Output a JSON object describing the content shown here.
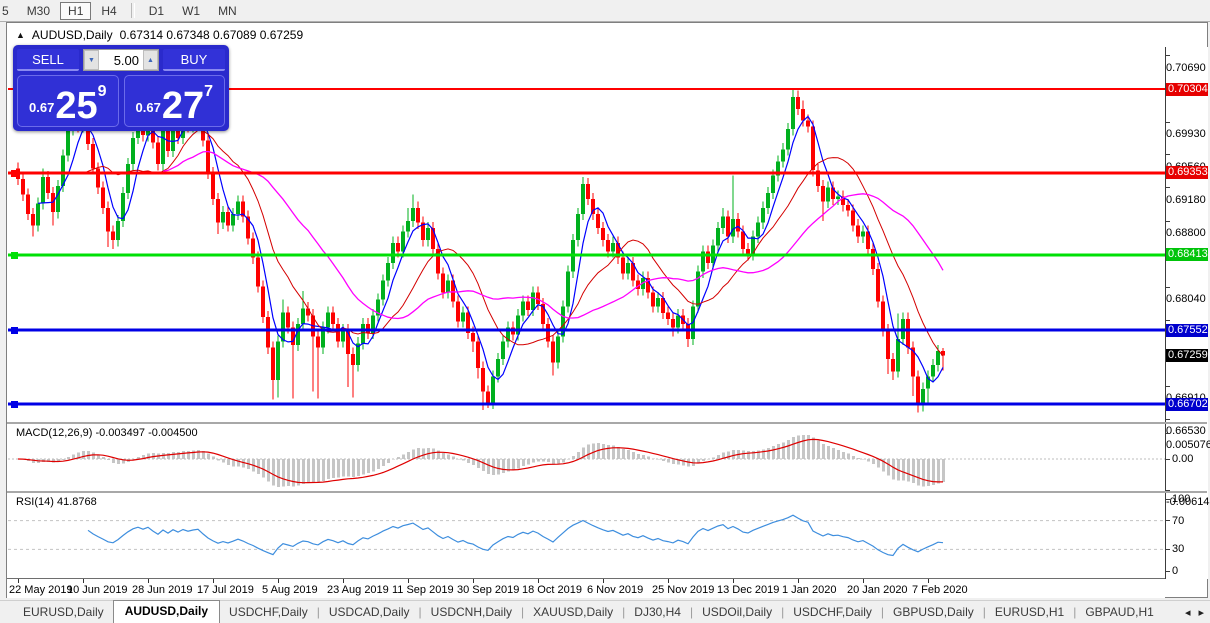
{
  "toolbar": {
    "periods": [
      {
        "label": "5"
      },
      {
        "label": "M30"
      },
      {
        "label": "H1",
        "active": true
      },
      {
        "label": "H4"
      },
      {
        "sep": true
      },
      {
        "label": "D1"
      },
      {
        "label": "W1"
      },
      {
        "label": "MN"
      }
    ]
  },
  "window": {
    "collapse_icon": "▲",
    "title_symbol": "AUDUSD,Daily",
    "title_ohlc": "0.67314 0.67348 0.67089 0.67259"
  },
  "trade_panel": {
    "sell_label": "SELL",
    "buy_label": "BUY",
    "volume": "5.00",
    "down_icon": "▼",
    "up_icon": "▲",
    "sell_price": {
      "prefix": "0.67",
      "big": "25",
      "sup": "9"
    },
    "buy_price": {
      "prefix": "0.67",
      "big": "27",
      "sup": "7"
    }
  },
  "price_axis": {
    "ticks": [
      "0.70690",
      "0.69930",
      "0.69560",
      "0.69180",
      "0.68800",
      "0.68040",
      "0.67660",
      "0.66910",
      "0.66530"
    ],
    "badges": [
      {
        "value": "0.70304",
        "bg": "#E60000"
      },
      {
        "value": "0.69353",
        "bg": "#E60000"
      },
      {
        "value": "0.68413",
        "bg": "#00C40A"
      },
      {
        "value": "0.67552",
        "bg": "#0000CD"
      },
      {
        "value": "0.67259",
        "bg": "#000000",
        "current": true
      },
      {
        "value": "0.66702",
        "bg": "#0000CD"
      }
    ]
  },
  "macd_panel": {
    "label": "MACD(12,26,9) -0.003497 -0.004500",
    "params": [
      12,
      26,
      9
    ],
    "main_value": -0.003497,
    "signal_value": -0.0045,
    "axis_labels": [
      0.005076,
      0.0,
      -0.006148
    ],
    "hist_color": "#C6C6C6",
    "signal_color": "#DF0000"
  },
  "rsi_panel": {
    "label": "RSI(14) 41.8768",
    "period": 14,
    "value": 41.8768,
    "axis_labels": [
      100,
      70,
      30,
      0
    ],
    "level_lines": [
      70,
      30
    ],
    "line_color": "#3E8EDE"
  },
  "bottom_tabs": {
    "labels": [
      "EURUSD,Daily",
      "AUDUSD,Daily",
      "USDCHF,Daily",
      "USDCAD,Daily",
      "USDCNH,Daily",
      "XAUUSD,Daily",
      "DJ30,H4",
      "USDOil,Daily",
      "USDCHF,Daily",
      "GBPUSD,Daily",
      "EURUSD,H1",
      "GBPAUD,H1"
    ],
    "active_index": 1,
    "scroll_left": "◂",
    "scroll_right": "▸"
  },
  "chart_data": {
    "type": "candlestick",
    "symbol": "AUDUSD",
    "timeframe": "Daily",
    "ylim": [
      0.665,
      0.7079
    ],
    "bar_spacing": 5,
    "bull_color": "#00B01E",
    "bear_color": "#FE0000",
    "x_labels": [
      "22 May 2019",
      "10 Jun 2019",
      "28 Jun 2019",
      "17 Jul 2019",
      "5 Aug 2019",
      "23 Aug 2019",
      "11 Sep 2019",
      "30 Sep 2019",
      "18 Oct 2019",
      "6 Nov 2019",
      "25 Nov 2019",
      "13 Dec 2019",
      "1 Jan 2020",
      "20 Jan 2020",
      "7 Feb 2020"
    ],
    "candles_per_label": 13,
    "moving_averages": [
      {
        "name": "fast-ma",
        "period": 5,
        "color": "#0000FF",
        "width": 1.2
      },
      {
        "name": "mid-ma",
        "period": 14,
        "color": "#D40000",
        "width": 1
      },
      {
        "name": "slow-ma",
        "period": 30,
        "color": "#FF00FF",
        "width": 1.3
      }
    ],
    "levels": [
      {
        "price": 0.70304,
        "color": "#FF0000",
        "width": 2,
        "handle": false
      },
      {
        "price": 0.69353,
        "color": "#FF0000",
        "width": 3,
        "handle": true
      },
      {
        "price": 0.68413,
        "color": "#00E006",
        "width": 3,
        "handle": true
      },
      {
        "price": 0.67552,
        "color": "#0000E6",
        "width": 3,
        "handle": true
      },
      {
        "price": 0.66702,
        "color": "#0000E6",
        "width": 3,
        "handle": true
      }
    ],
    "candles": [
      [
        0.694,
        0.6947,
        0.6921,
        0.6928
      ],
      [
        0.6928,
        0.6935,
        0.6903,
        0.691
      ],
      [
        0.691,
        0.6917,
        0.6881,
        0.6888
      ],
      [
        0.6888,
        0.6895,
        0.6862,
        0.6875
      ],
      [
        0.6875,
        0.6907,
        0.6868,
        0.69
      ],
      [
        0.69,
        0.694,
        0.6893,
        0.693
      ],
      [
        0.693,
        0.6937,
        0.6905,
        0.6912
      ],
      [
        0.6912,
        0.6919,
        0.6875,
        0.689
      ],
      [
        0.689,
        0.6927,
        0.6883,
        0.692
      ],
      [
        0.692,
        0.6962,
        0.6913,
        0.6955
      ],
      [
        0.6955,
        0.6992,
        0.6948,
        0.6985
      ],
      [
        0.6985,
        0.7013,
        0.6978,
        0.7
      ],
      [
        0.7,
        0.7007,
        0.6981,
        0.6988
      ],
      [
        0.6988,
        0.701,
        0.6981,
        0.6995
      ],
      [
        0.6995,
        0.7002,
        0.6961,
        0.6968
      ],
      [
        0.6968,
        0.6975,
        0.6933,
        0.694
      ],
      [
        0.694,
        0.6947,
        0.6911,
        0.6918
      ],
      [
        0.6918,
        0.6925,
        0.6888,
        0.6895
      ],
      [
        0.6895,
        0.6902,
        0.685,
        0.6868
      ],
      [
        0.6868,
        0.6875,
        0.6848,
        0.6858
      ],
      [
        0.6858,
        0.6887,
        0.6851,
        0.688
      ],
      [
        0.688,
        0.6919,
        0.6873,
        0.6912
      ],
      [
        0.6912,
        0.6952,
        0.6905,
        0.6945
      ],
      [
        0.6945,
        0.6982,
        0.6938,
        0.6975
      ],
      [
        0.6975,
        0.6999,
        0.6968,
        0.6992
      ],
      [
        0.6992,
        0.6999,
        0.6971,
        0.6978
      ],
      [
        0.6978,
        0.7008,
        0.6971,
        0.6998
      ],
      [
        0.6998,
        0.7005,
        0.6963,
        0.697
      ],
      [
        0.697,
        0.6977,
        0.6938,
        0.6945
      ],
      [
        0.6945,
        0.6992,
        0.6938,
        0.6985
      ],
      [
        0.6985,
        0.6992,
        0.6953,
        0.696
      ],
      [
        0.696,
        0.701,
        0.6953,
        0.6995
      ],
      [
        0.6995,
        0.7002,
        0.6968,
        0.6975
      ],
      [
        0.6975,
        0.7012,
        0.6968,
        0.7002
      ],
      [
        0.7002,
        0.7009,
        0.6981,
        0.6988
      ],
      [
        0.6988,
        0.7007,
        0.6981,
        0.7
      ],
      [
        0.7,
        0.7018,
        0.6993,
        0.7007
      ],
      [
        0.7007,
        0.7014,
        0.6965,
        0.6972
      ],
      [
        0.6972,
        0.6979,
        0.6928,
        0.6935
      ],
      [
        0.6935,
        0.6942,
        0.6898,
        0.6905
      ],
      [
        0.6905,
        0.6912,
        0.6865,
        0.6878
      ],
      [
        0.6878,
        0.6897,
        0.6871,
        0.689
      ],
      [
        0.689,
        0.6897,
        0.6868,
        0.6875
      ],
      [
        0.6875,
        0.6895,
        0.6868,
        0.6888
      ],
      [
        0.6888,
        0.6909,
        0.6881,
        0.6902
      ],
      [
        0.6902,
        0.6909,
        0.6878,
        0.6885
      ],
      [
        0.6885,
        0.6892,
        0.6853,
        0.686
      ],
      [
        0.686,
        0.6867,
        0.6831,
        0.6838
      ],
      [
        0.6838,
        0.6845,
        0.6798,
        0.6805
      ],
      [
        0.6805,
        0.6812,
        0.6763,
        0.677
      ],
      [
        0.677,
        0.6777,
        0.6728,
        0.6735
      ],
      [
        0.6735,
        0.6742,
        0.6676,
        0.6698
      ],
      [
        0.6698,
        0.6749,
        0.6678,
        0.6742
      ],
      [
        0.6742,
        0.679,
        0.6735,
        0.6775
      ],
      [
        0.6775,
        0.6782,
        0.6751,
        0.6758
      ],
      [
        0.6758,
        0.6765,
        0.6677,
        0.6738
      ],
      [
        0.6738,
        0.6769,
        0.6731,
        0.6762
      ],
      [
        0.6762,
        0.68,
        0.6755,
        0.678
      ],
      [
        0.678,
        0.6787,
        0.6765,
        0.6772
      ],
      [
        0.6772,
        0.6779,
        0.6685,
        0.6748
      ],
      [
        0.6748,
        0.6755,
        0.6677,
        0.6735
      ],
      [
        0.6735,
        0.6765,
        0.6728,
        0.6758
      ],
      [
        0.6758,
        0.6782,
        0.6751,
        0.6775
      ],
      [
        0.6775,
        0.6782,
        0.6755,
        0.6762
      ],
      [
        0.6762,
        0.6769,
        0.6735,
        0.6742
      ],
      [
        0.6742,
        0.6762,
        0.6735,
        0.6755
      ],
      [
        0.6755,
        0.6762,
        0.669,
        0.6728
      ],
      [
        0.6728,
        0.6735,
        0.6678,
        0.6715
      ],
      [
        0.6715,
        0.6747,
        0.6708,
        0.674
      ],
      [
        0.674,
        0.6769,
        0.6733,
        0.6762
      ],
      [
        0.6762,
        0.6769,
        0.6745,
        0.6752
      ],
      [
        0.6752,
        0.6779,
        0.6745,
        0.6772
      ],
      [
        0.6772,
        0.6797,
        0.6765,
        0.679
      ],
      [
        0.679,
        0.6819,
        0.6783,
        0.6812
      ],
      [
        0.6812,
        0.6839,
        0.6805,
        0.6832
      ],
      [
        0.6832,
        0.6862,
        0.6825,
        0.6855
      ],
      [
        0.6855,
        0.6862,
        0.6838,
        0.6845
      ],
      [
        0.6845,
        0.6875,
        0.6838,
        0.6868
      ],
      [
        0.6868,
        0.6895,
        0.6861,
        0.688
      ],
      [
        0.688,
        0.691,
        0.6873,
        0.6895
      ],
      [
        0.6895,
        0.6902,
        0.6871,
        0.6878
      ],
      [
        0.6878,
        0.6885,
        0.6851,
        0.6858
      ],
      [
        0.6858,
        0.6879,
        0.6851,
        0.6872
      ],
      [
        0.6872,
        0.6879,
        0.6841,
        0.6848
      ],
      [
        0.6848,
        0.6855,
        0.6813,
        0.682
      ],
      [
        0.682,
        0.6827,
        0.6791,
        0.6798
      ],
      [
        0.6798,
        0.6819,
        0.6791,
        0.6812
      ],
      [
        0.6812,
        0.6819,
        0.6781,
        0.6788
      ],
      [
        0.6788,
        0.6795,
        0.6758,
        0.6765
      ],
      [
        0.6765,
        0.6782,
        0.6758,
        0.6775
      ],
      [
        0.6775,
        0.6782,
        0.6745,
        0.6752
      ],
      [
        0.6752,
        0.6759,
        0.673,
        0.6742
      ],
      [
        0.6742,
        0.6749,
        0.67,
        0.6712
      ],
      [
        0.6712,
        0.6719,
        0.6664,
        0.6685
      ],
      [
        0.6685,
        0.6692,
        0.6666,
        0.6672
      ],
      [
        0.6672,
        0.6709,
        0.6665,
        0.6702
      ],
      [
        0.6702,
        0.6729,
        0.6695,
        0.6722
      ],
      [
        0.6722,
        0.6749,
        0.6715,
        0.6742
      ],
      [
        0.6742,
        0.6765,
        0.6735,
        0.6758
      ],
      [
        0.6758,
        0.6765,
        0.6743,
        0.675
      ],
      [
        0.675,
        0.6779,
        0.6743,
        0.6772
      ],
      [
        0.6772,
        0.6795,
        0.6765,
        0.6788
      ],
      [
        0.6788,
        0.6795,
        0.6771,
        0.6778
      ],
      [
        0.6778,
        0.6805,
        0.6771,
        0.6798
      ],
      [
        0.6798,
        0.6805,
        0.6778,
        0.6785
      ],
      [
        0.6785,
        0.6792,
        0.6755,
        0.6762
      ],
      [
        0.6762,
        0.6769,
        0.6735,
        0.6742
      ],
      [
        0.6742,
        0.6749,
        0.6703,
        0.6718
      ],
      [
        0.6718,
        0.6755,
        0.6711,
        0.6748
      ],
      [
        0.6748,
        0.6789,
        0.6741,
        0.6782
      ],
      [
        0.6782,
        0.6829,
        0.6775,
        0.6822
      ],
      [
        0.6822,
        0.6865,
        0.6815,
        0.6858
      ],
      [
        0.6858,
        0.6895,
        0.6851,
        0.6888
      ],
      [
        0.6888,
        0.693,
        0.6881,
        0.6922
      ],
      [
        0.6922,
        0.6929,
        0.6898,
        0.6905
      ],
      [
        0.6905,
        0.6912,
        0.6881,
        0.6888
      ],
      [
        0.6888,
        0.6895,
        0.6865,
        0.6872
      ],
      [
        0.6872,
        0.6879,
        0.6851,
        0.6858
      ],
      [
        0.6858,
        0.6865,
        0.6838,
        0.6845
      ],
      [
        0.6845,
        0.6862,
        0.6838,
        0.6855
      ],
      [
        0.6855,
        0.6862,
        0.6831,
        0.6838
      ],
      [
        0.6838,
        0.6845,
        0.6813,
        0.682
      ],
      [
        0.682,
        0.6839,
        0.6813,
        0.6832
      ],
      [
        0.6832,
        0.6839,
        0.6805,
        0.6812
      ],
      [
        0.6812,
        0.6819,
        0.6795,
        0.6802
      ],
      [
        0.6802,
        0.6822,
        0.6795,
        0.6815
      ],
      [
        0.6815,
        0.6822,
        0.6791,
        0.6798
      ],
      [
        0.6798,
        0.6805,
        0.6775,
        0.6782
      ],
      [
        0.6782,
        0.6799,
        0.6775,
        0.6792
      ],
      [
        0.6792,
        0.6799,
        0.6768,
        0.6775
      ],
      [
        0.6775,
        0.6782,
        0.6761,
        0.6768
      ],
      [
        0.6768,
        0.6775,
        0.6748,
        0.6758
      ],
      [
        0.6758,
        0.6779,
        0.6751,
        0.6772
      ],
      [
        0.6772,
        0.6779,
        0.6755,
        0.6762
      ],
      [
        0.6762,
        0.6769,
        0.6736,
        0.6745
      ],
      [
        0.6745,
        0.6789,
        0.6738,
        0.6782
      ],
      [
        0.6782,
        0.6829,
        0.6775,
        0.6822
      ],
      [
        0.6822,
        0.6852,
        0.6815,
        0.6845
      ],
      [
        0.6845,
        0.6852,
        0.6825,
        0.6832
      ],
      [
        0.6832,
        0.6859,
        0.6825,
        0.6852
      ],
      [
        0.6852,
        0.6879,
        0.6845,
        0.6872
      ],
      [
        0.6872,
        0.6895,
        0.6865,
        0.6885
      ],
      [
        0.6885,
        0.6892,
        0.6855,
        0.6862
      ],
      [
        0.6862,
        0.6932,
        0.6855,
        0.6882
      ],
      [
        0.6882,
        0.6889,
        0.6861,
        0.6868
      ],
      [
        0.6868,
        0.6875,
        0.6841,
        0.6848
      ],
      [
        0.6848,
        0.6855,
        0.6835,
        0.6842
      ],
      [
        0.6842,
        0.6869,
        0.6835,
        0.6862
      ],
      [
        0.6862,
        0.6885,
        0.6855,
        0.6878
      ],
      [
        0.6878,
        0.6902,
        0.6871,
        0.6895
      ],
      [
        0.6895,
        0.6919,
        0.6888,
        0.6912
      ],
      [
        0.6912,
        0.6939,
        0.6905,
        0.6932
      ],
      [
        0.6932,
        0.6955,
        0.6925,
        0.6948
      ],
      [
        0.6948,
        0.6969,
        0.6941,
        0.6962
      ],
      [
        0.6962,
        0.6992,
        0.6955,
        0.6985
      ],
      [
        0.6985,
        0.703,
        0.6978,
        0.7022
      ],
      [
        0.7022,
        0.7029,
        0.7001,
        0.7008
      ],
      [
        0.7008,
        0.7018,
        0.6988,
        0.6995
      ],
      [
        0.6995,
        0.7002,
        0.6981,
        0.6988
      ],
      [
        0.6988,
        0.6995,
        0.6931,
        0.6938
      ],
      [
        0.6938,
        0.6945,
        0.6913,
        0.692
      ],
      [
        0.692,
        0.6927,
        0.688,
        0.6902
      ],
      [
        0.6902,
        0.6925,
        0.6895,
        0.6918
      ],
      [
        0.6918,
        0.6925,
        0.6898,
        0.6905
      ],
      [
        0.6905,
        0.6915,
        0.6898,
        0.6908
      ],
      [
        0.6908,
        0.6915,
        0.6891,
        0.6898
      ],
      [
        0.6898,
        0.6905,
        0.6885,
        0.6892
      ],
      [
        0.6892,
        0.6899,
        0.6868,
        0.6875
      ],
      [
        0.6875,
        0.6882,
        0.6855,
        0.6862
      ],
      [
        0.6862,
        0.6875,
        0.6855,
        0.6868
      ],
      [
        0.6868,
        0.6875,
        0.6841,
        0.6848
      ],
      [
        0.6848,
        0.6855,
        0.6818,
        0.6825
      ],
      [
        0.6825,
        0.6832,
        0.6781,
        0.6788
      ],
      [
        0.6788,
        0.6795,
        0.6748,
        0.6755
      ],
      [
        0.6755,
        0.6762,
        0.6705,
        0.6722
      ],
      [
        0.6722,
        0.6729,
        0.6698,
        0.6708
      ],
      [
        0.6708,
        0.6774,
        0.6701,
        0.6745
      ],
      [
        0.6745,
        0.6775,
        0.6738,
        0.6768
      ],
      [
        0.6768,
        0.6775,
        0.6728,
        0.6735
      ],
      [
        0.6735,
        0.6742,
        0.668,
        0.6702
      ],
      [
        0.6702,
        0.6709,
        0.6661,
        0.6672
      ],
      [
        0.6672,
        0.6695,
        0.6662,
        0.6688
      ],
      [
        0.6688,
        0.6709,
        0.667,
        0.6702
      ],
      [
        0.6702,
        0.6722,
        0.6695,
        0.6715
      ],
      [
        0.6715,
        0.6738,
        0.6708,
        0.67314
      ],
      [
        0.67314,
        0.67348,
        0.67089,
        0.67259
      ]
    ]
  }
}
